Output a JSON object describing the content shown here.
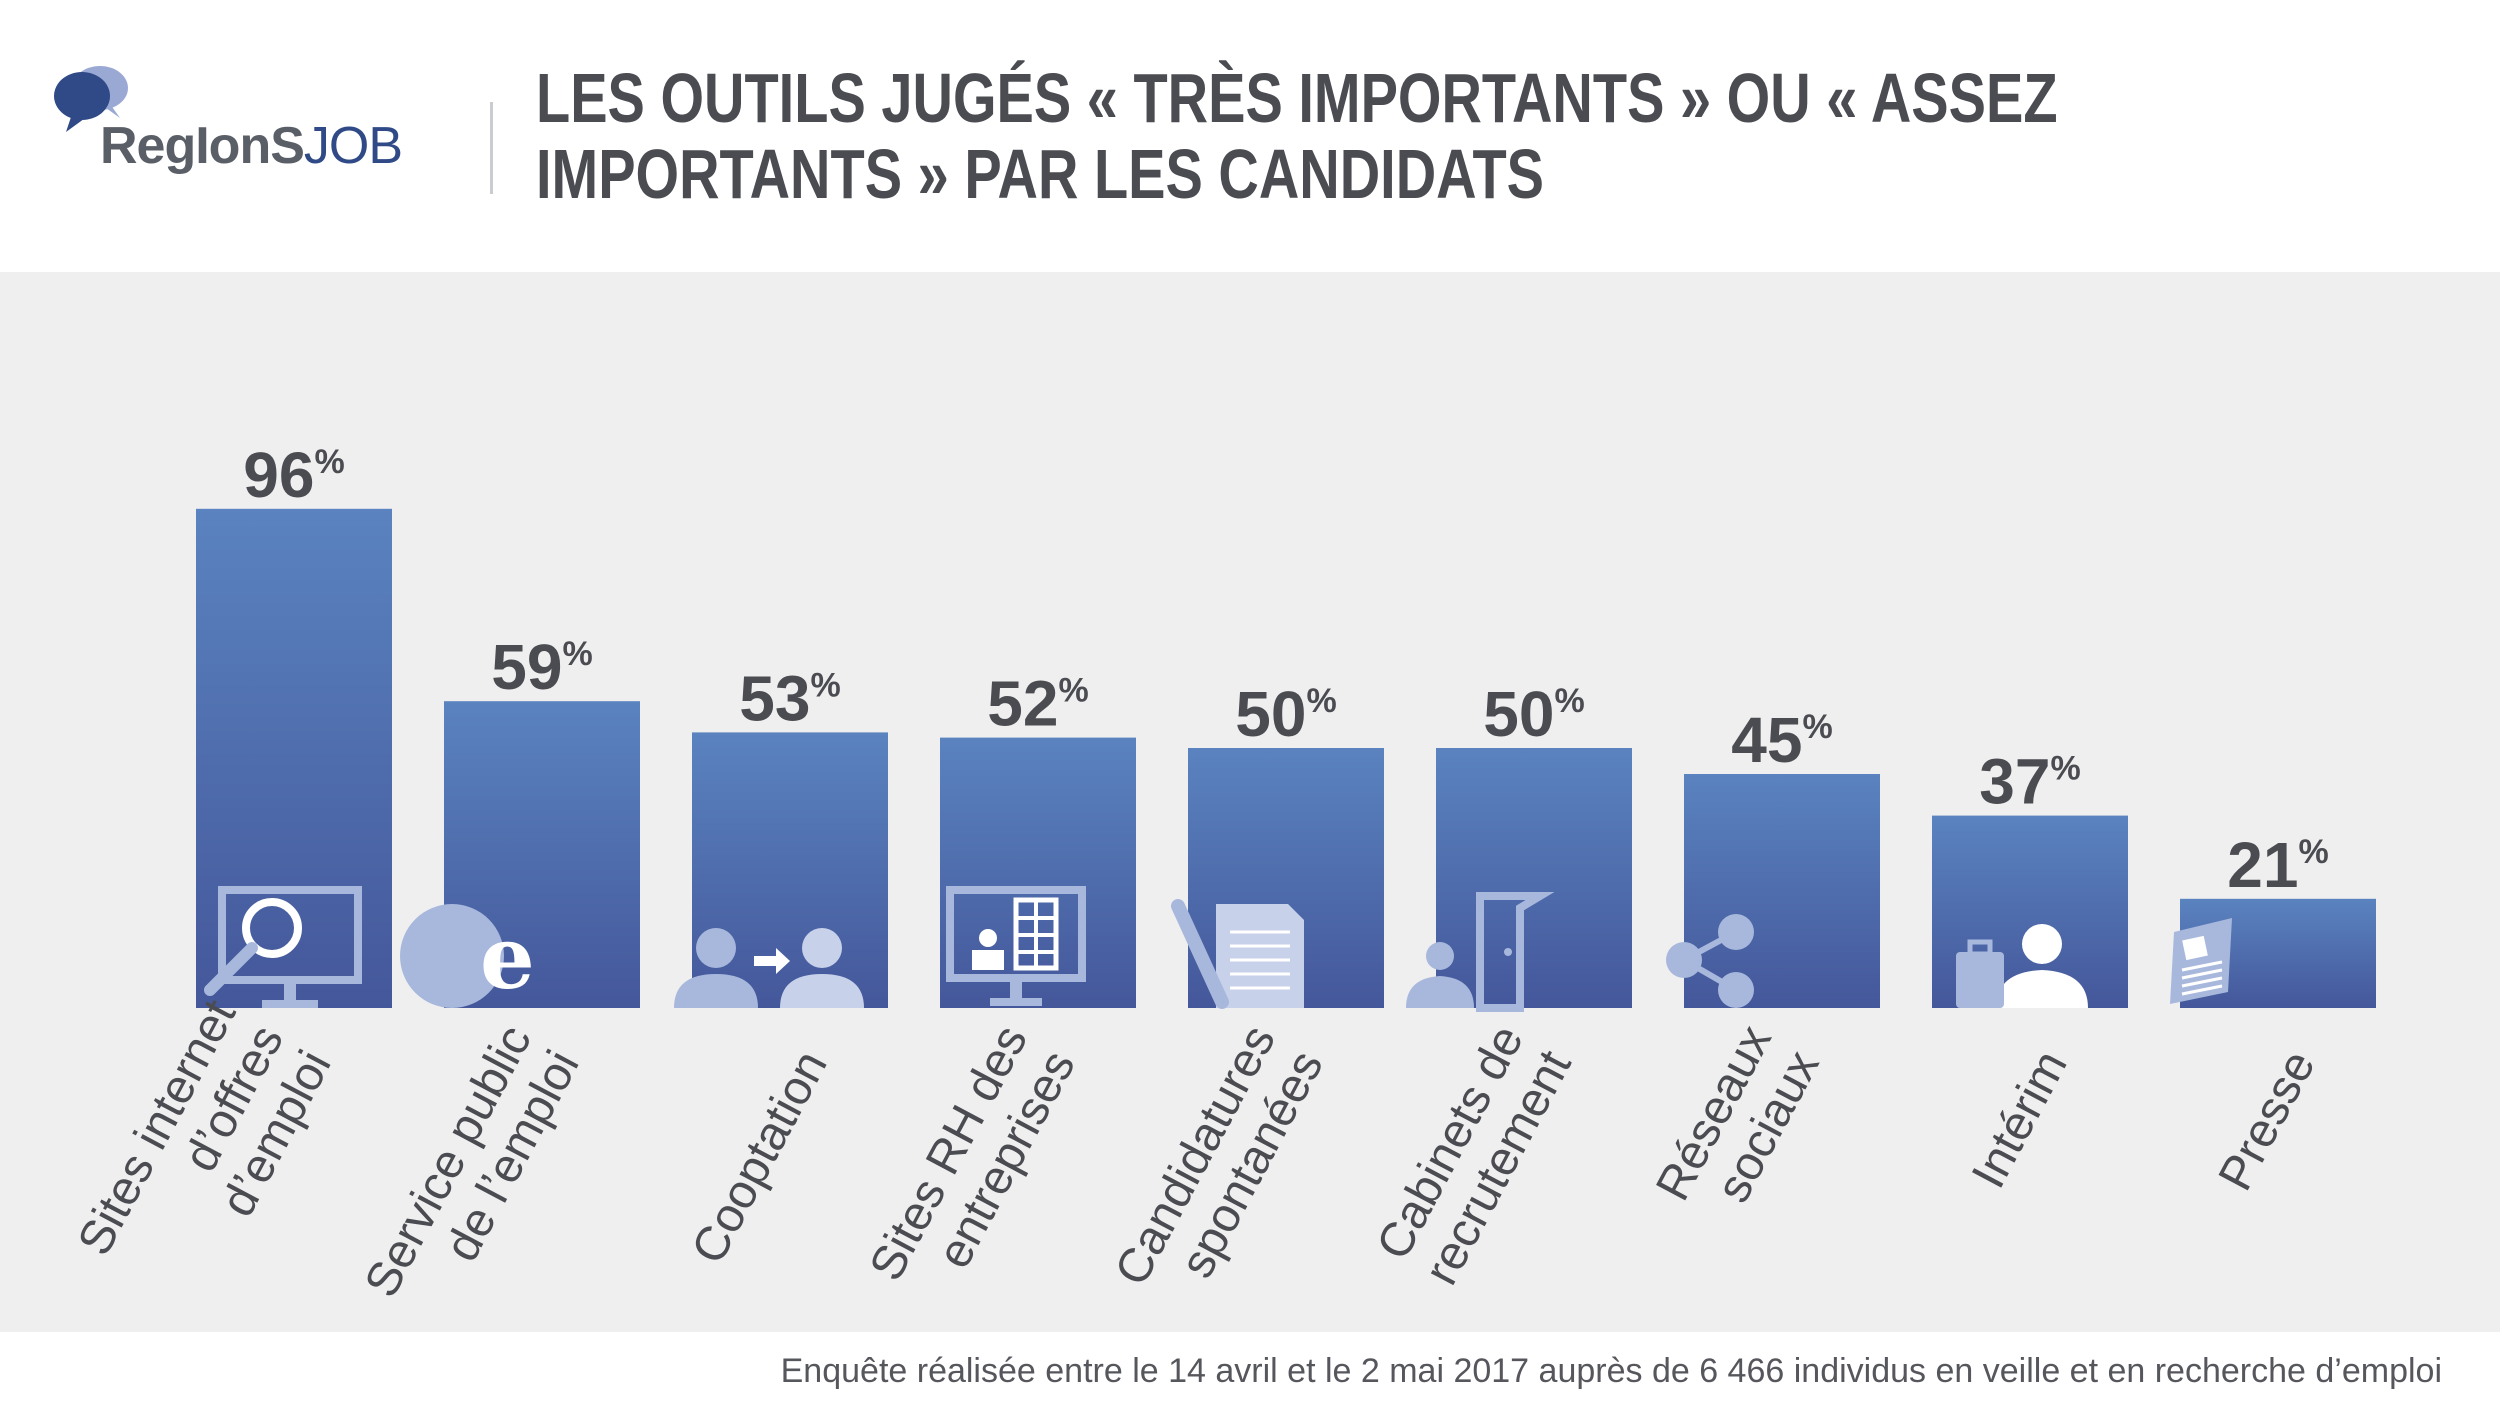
{
  "header": {
    "logo_text_main": "RegIonS",
    "logo_text_accent": "JOB",
    "title_line1": "LES OUTILS JUGÉS « TRÈS IMPORTANTS » OU « ASSEZ",
    "title_line2": "IMPORTANTS » PAR LES CANDIDATS"
  },
  "footnote": "Enquête réalisée entre le 14 avril et le 2 mai 2017 auprès de 6 466 individus en veille et en recherche d’emploi",
  "colors": {
    "bar_top": "#5a83bf",
    "bar_bottom": "#44579a",
    "icon": "#a8b8dd",
    "panel": "#efefef",
    "text": "#4a4c51"
  },
  "chart_data": {
    "type": "bar",
    "title": "LES OUTILS JUGÉS « TRÈS IMPORTANTS » OU « ASSEZ IMPORTANTS » PAR LES CANDIDATS",
    "value_suffix": "%",
    "ylim": [
      0,
      100
    ],
    "grid": false,
    "categories": [
      [
        "Sites internet",
        "d’offres",
        "d’emploi"
      ],
      [
        "Service public",
        "de l’emploi"
      ],
      [
        "Cooptation"
      ],
      [
        "Sites RH des",
        "entreprises"
      ],
      [
        "Candidatures",
        "spontanées"
      ],
      [
        "Cabinets de",
        "recrutement"
      ],
      [
        "Réseaux",
        "sociaux"
      ],
      [
        "Intérim"
      ],
      [
        "Presse"
      ]
    ],
    "values": [
      96,
      59,
      53,
      52,
      50,
      50,
      45,
      37,
      21
    ],
    "icons": [
      "monitor-search-icon",
      "e-letter-icon",
      "referral-people-icon",
      "monitor-building-icon",
      "pen-document-icon",
      "door-person-icon",
      "share-network-icon",
      "worker-briefcase-icon",
      "newspaper-icon"
    ]
  }
}
